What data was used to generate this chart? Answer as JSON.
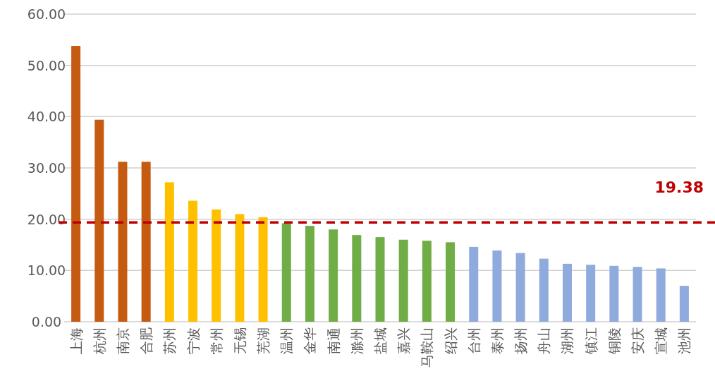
{
  "chart_data": {
    "type": "bar",
    "categories": [
      "上海",
      "杭州",
      "南京",
      "合肥",
      "苏州",
      "宁波",
      "常州",
      "无锡",
      "芜湖",
      "温州",
      "金华",
      "南通",
      "滁州",
      "盐城",
      "嘉兴",
      "马鞍山",
      "绍兴",
      "台州",
      "泰州",
      "扬州",
      "舟山",
      "湖州",
      "镇江",
      "铜陵",
      "安庆",
      "宣城",
      "池州"
    ],
    "values": [
      53.8,
      39.4,
      31.2,
      31.2,
      27.2,
      23.6,
      21.9,
      21.0,
      20.4,
      19.2,
      18.7,
      18.0,
      16.9,
      16.5,
      16.0,
      15.8,
      15.5,
      14.6,
      13.9,
      13.4,
      12.3,
      11.3,
      11.1,
      10.9,
      10.7,
      10.4,
      7.0
    ],
    "colors": [
      "#c55a11",
      "#c55a11",
      "#c55a11",
      "#c55a11",
      "#ffc000",
      "#ffc000",
      "#ffc000",
      "#ffc000",
      "#ffc000",
      "#70ad47",
      "#70ad47",
      "#70ad47",
      "#70ad47",
      "#70ad47",
      "#70ad47",
      "#70ad47",
      "#70ad47",
      "#8faadc",
      "#8faadc",
      "#8faadc",
      "#8faadc",
      "#8faadc",
      "#8faadc",
      "#8faadc",
      "#8faadc",
      "#8faadc",
      "#8faadc"
    ],
    "ylim": [
      0,
      60
    ],
    "yticks": [
      {
        "value": 0,
        "label": "0.00"
      },
      {
        "value": 10,
        "label": "10.00"
      },
      {
        "value": 20,
        "label": "20.00"
      },
      {
        "value": 30,
        "label": "30.00"
      },
      {
        "value": 40,
        "label": "40.00"
      },
      {
        "value": 50,
        "label": "50.00"
      },
      {
        "value": 60,
        "label": "60.00"
      }
    ],
    "grid": "y",
    "ref_lines": [
      {
        "axis": "y",
        "value": 19.38,
        "label": "19.38",
        "color": "#c00000",
        "line_style": "dashed"
      }
    ]
  }
}
